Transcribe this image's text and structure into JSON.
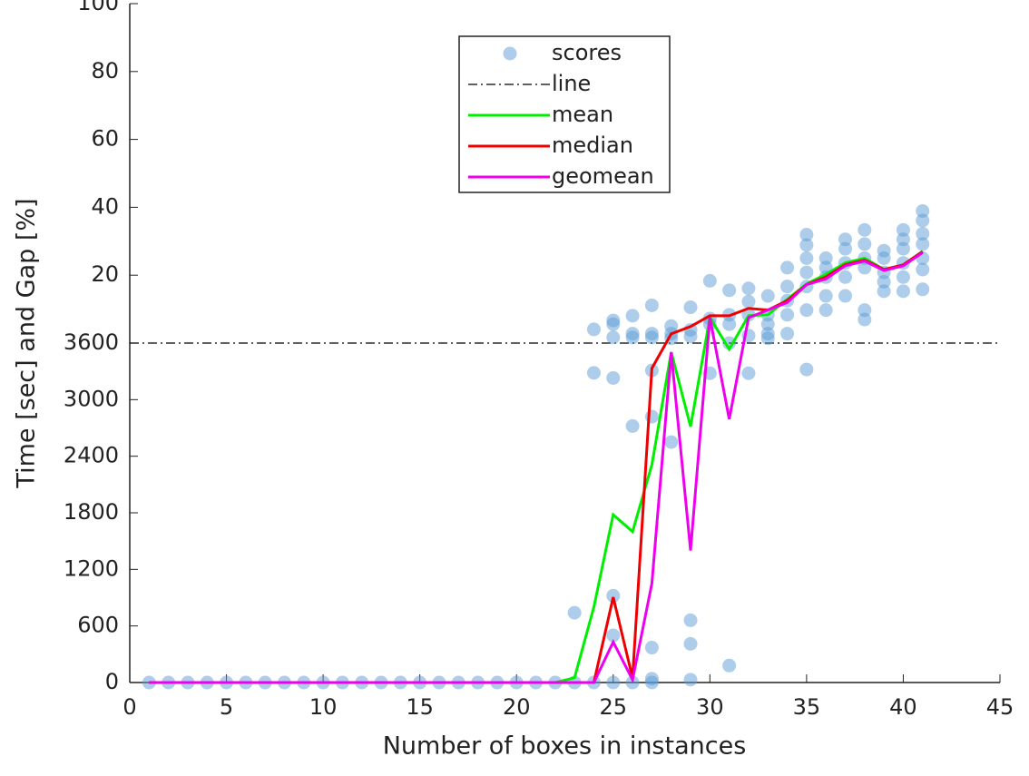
{
  "chart_data": {
    "type": "line",
    "xlabel": "Number of boxes in instances",
    "ylabel": "Time [sec] and  Gap [%]",
    "xlim": [
      0,
      45
    ],
    "xticks": [
      0,
      5,
      10,
      15,
      20,
      25,
      30,
      35,
      40,
      45
    ],
    "ylim": [
      0,
      7200
    ],
    "yticks": [
      0,
      600,
      1200,
      1800,
      2400,
      3000,
      3600,
      {
        "value": 4320,
        "label": "20"
      },
      {
        "value": 5040,
        "label": "40"
      },
      {
        "value": 5760,
        "label": "60"
      },
      {
        "value": 6480,
        "label": "80"
      },
      {
        "value": 7200,
        "label": "100"
      }
    ],
    "legend": "upper center",
    "hline": {
      "name": "line",
      "value": 3600,
      "color": "#000000"
    },
    "x": [
      1,
      2,
      3,
      4,
      5,
      6,
      7,
      8,
      9,
      10,
      11,
      12,
      13,
      14,
      15,
      16,
      17,
      18,
      19,
      20,
      21,
      22,
      23,
      24,
      25,
      26,
      27,
      28,
      29,
      30,
      31,
      32,
      33,
      34,
      35,
      36,
      37,
      38,
      39,
      40,
      41
    ],
    "series": [
      {
        "name": "scores",
        "type": "scatter",
        "color": "#5b9bd5",
        "x": [
          1,
          2,
          3,
          4,
          5,
          6,
          7,
          8,
          9,
          10,
          11,
          12,
          13,
          14,
          15,
          16,
          17,
          18,
          19,
          20,
          21,
          22,
          23,
          23,
          24,
          24,
          24,
          25,
          25,
          25,
          25,
          25,
          25,
          25,
          26,
          26,
          26,
          26,
          26,
          27,
          27,
          27,
          27,
          27,
          27,
          27,
          27,
          28,
          28,
          28,
          28,
          29,
          29,
          29,
          29,
          29,
          29,
          30,
          30,
          30,
          30,
          31,
          31,
          31,
          31,
          31,
          32,
          32,
          32,
          32,
          32,
          33,
          33,
          33,
          33,
          33,
          34,
          34,
          34,
          34,
          34,
          35,
          35,
          35,
          35,
          35,
          35,
          35,
          36,
          36,
          36,
          36,
          36,
          37,
          37,
          37,
          37,
          37,
          38,
          38,
          38,
          38,
          38,
          38,
          39,
          39,
          39,
          39,
          39,
          40,
          40,
          40,
          40,
          40,
          40,
          41,
          41,
          41,
          41,
          41,
          41,
          41
        ],
        "values": [
          0,
          0,
          0,
          0,
          0,
          0,
          0,
          0,
          0,
          0,
          0,
          0,
          0,
          0,
          0,
          0,
          0,
          0,
          0,
          0,
          0,
          0,
          0,
          740,
          0,
          3745,
          3284,
          0,
          500,
          920,
          3230,
          3800,
          3840,
          3660,
          0,
          2720,
          3890,
          3660,
          3700,
          0,
          40,
          370,
          2820,
          3310,
          3700,
          3660,
          4000,
          2550,
          3780,
          3650,
          3700,
          30,
          410,
          660,
          3670,
          3740,
          3980,
          3280,
          3800,
          3860,
          4260,
          180,
          3600,
          3800,
          3900,
          4160,
          3280,
          3680,
          3900,
          4040,
          4180,
          3650,
          3700,
          3800,
          3900,
          4100,
          3700,
          3900,
          4050,
          4200,
          4400,
          3320,
          3950,
          4200,
          4350,
          4500,
          4640,
          4750,
          3950,
          4100,
          4300,
          4400,
          4500,
          4100,
          4300,
          4450,
          4600,
          4700,
          3850,
          3950,
          4400,
          4500,
          4650,
          4800,
          4150,
          4250,
          4350,
          4500,
          4580,
          4150,
          4300,
          4450,
          4600,
          4700,
          4800,
          4170,
          4380,
          4500,
          4650,
          4760,
          4900,
          5000
        ]
      },
      {
        "name": "mean",
        "type": "line",
        "color": "#00ee00",
        "values": [
          0,
          0,
          0,
          0,
          0,
          0,
          0,
          0,
          0,
          0,
          0,
          0,
          0,
          0,
          0,
          0,
          0,
          0,
          0,
          0,
          0,
          0,
          50,
          800,
          1780,
          1600,
          2310,
          3505,
          2715,
          3870,
          3535,
          3890,
          3900,
          4064,
          4228,
          4330,
          4450,
          4500,
          4380,
          4430,
          4574
        ]
      },
      {
        "name": "median",
        "type": "line",
        "color": "#ee0000",
        "values": [
          0,
          0,
          0,
          0,
          0,
          0,
          0,
          0,
          0,
          0,
          0,
          0,
          0,
          0,
          0,
          0,
          0,
          0,
          0,
          0,
          0,
          0,
          0,
          0,
          905,
          50,
          3332,
          3698,
          3775,
          3890,
          3890,
          3968,
          3950,
          4050,
          4220,
          4300,
          4430,
          4480,
          4380,
          4430,
          4570
        ]
      },
      {
        "name": "geomean",
        "type": "line",
        "color": "#ee00ee",
        "values": [
          0,
          0,
          0,
          0,
          0,
          0,
          0,
          0,
          0,
          0,
          0,
          0,
          0,
          0,
          0,
          0,
          0,
          0,
          0,
          0,
          0,
          0,
          0,
          0,
          430,
          30,
          1050,
          3500,
          1400,
          3870,
          2793,
          3870,
          3950,
          4030,
          4220,
          4280,
          4420,
          4470,
          4370,
          4420,
          4560
        ]
      }
    ]
  }
}
